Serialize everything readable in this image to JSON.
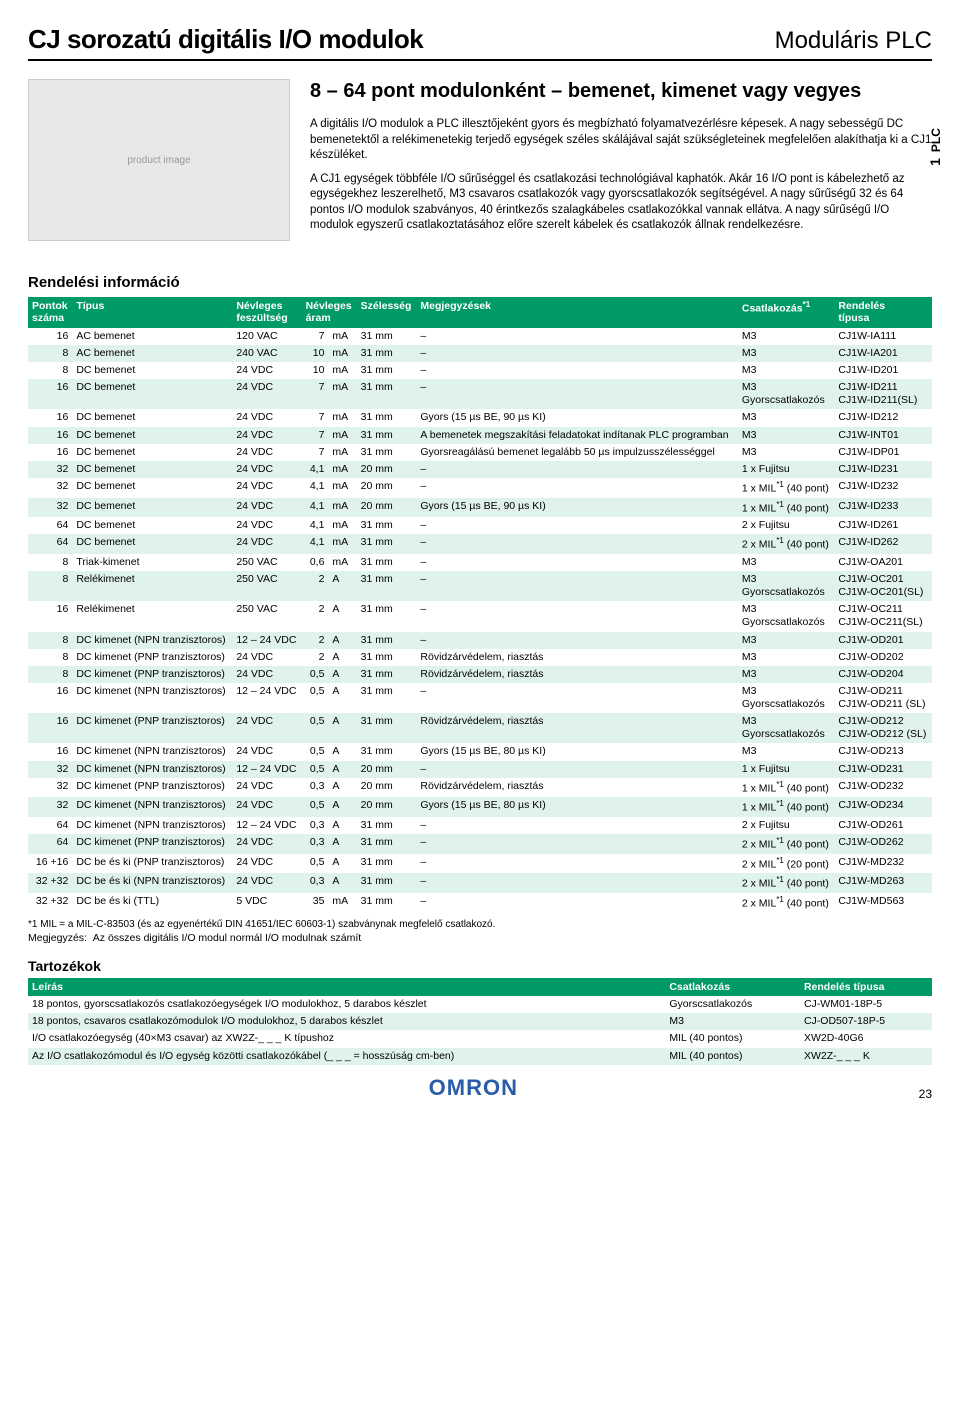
{
  "title": "CJ sorozatú digitális I/O modulok",
  "category": "Moduláris PLC",
  "headline": "8 – 64 pont modulonként – bemenet, kimenet vagy vegyes",
  "p1": "A digitális I/O modulok a PLC illesztőjeként gyors és megbízható folyamatvezérlésre képesek. A nagy sebességű DC bemenetektől a relékimenetekig terjedő egységek széles skálájával saját szükségleteinek megfelelően alakíthatja ki a CJ1 készüléket.",
  "p2": "A CJ1 egységek többféle I/O sűrűséggel és csatlakozási technológiával kaphatók. Akár 16 I/O pont is kábelezhető az egységekhez leszerelhető, M3 csavaros csatlakozók vagy gyorscsatlakozók segítségével. A nagy sűrűségű 32 és 64 pontos I/O modulok szabványos, 40 érintkezős szalagkábeles csatlakozókkal vannak ellátva. A nagy sűrűségű I/O modulok egyszerű csatlakoztatásához előre szerelt kábelek és csatlakozók állnak rendelkezésre.",
  "side_num": "1",
  "side_txt": "PLC",
  "order_title": "Rendelési információ",
  "th": [
    "Pontok száma",
    "Típus",
    "Névleges feszültség",
    "Névleges áram",
    "Szélesség",
    "Megjegyzések",
    "Csatlakozás",
    "Rendelés típusa"
  ],
  "th_fn": "*1",
  "rows": [
    [
      "16",
      "AC bemenet",
      "120 VAC",
      "7",
      "mA",
      "31 mm",
      "–",
      "M3",
      "CJ1W-IA111"
    ],
    [
      "8",
      "AC bemenet",
      "240 VAC",
      "10",
      "mA",
      "31 mm",
      "–",
      "M3",
      "CJ1W-IA201"
    ],
    [
      "8",
      "DC bemenet",
      "24 VDC",
      "10",
      "mA",
      "31 mm",
      "–",
      "M3",
      "CJ1W-ID201"
    ],
    [
      "16",
      "DC bemenet",
      "24 VDC",
      "7",
      "mA",
      "31 mm",
      "–",
      "M3\nGyorscsatlakozós",
      "CJ1W-ID211\nCJ1W-ID211(SL)"
    ],
    [
      "16",
      "DC bemenet",
      "24 VDC",
      "7",
      "mA",
      "31 mm",
      "Gyors (15 µs BE, 90 µs KI)",
      "M3",
      "CJ1W-ID212"
    ],
    [
      "16",
      "DC bemenet",
      "24 VDC",
      "7",
      "mA",
      "31 mm",
      "A bemenetek megszakítási feladatokat indítanak PLC programban",
      "M3",
      "CJ1W-INT01"
    ],
    [
      "16",
      "DC bemenet",
      "24 VDC",
      "7",
      "mA",
      "31 mm",
      "Gyorsreagálású bemenet legalább 50 µs impulzusszélességgel",
      "M3",
      "CJ1W-IDP01"
    ],
    [
      "32",
      "DC bemenet",
      "24 VDC",
      "4,1",
      "mA",
      "20 mm",
      "–",
      "1 x Fujitsu",
      "CJ1W-ID231"
    ],
    [
      "32",
      "DC bemenet",
      "24 VDC",
      "4,1",
      "mA",
      "20 mm",
      "–",
      "1 x MIL<sup>*1</sup> (40 pont)",
      "CJ1W-ID232"
    ],
    [
      "32",
      "DC bemenet",
      "24 VDC",
      "4,1",
      "mA",
      "20 mm",
      "Gyors (15 µs BE, 90 µs KI)",
      "1 x MIL<sup>*1</sup> (40 pont)",
      "CJ1W-ID233"
    ],
    [
      "64",
      "DC bemenet",
      "24 VDC",
      "4,1",
      "mA",
      "31 mm",
      "–",
      "2 x Fujitsu",
      "CJ1W-ID261"
    ],
    [
      "64",
      "DC bemenet",
      "24 VDC",
      "4,1",
      "mA",
      "31 mm",
      "–",
      "2 x MIL<sup>*1</sup> (40 pont)",
      "CJ1W-ID262"
    ],
    [
      "8",
      "Triak-kimenet",
      "250 VAC",
      "0,6",
      "mA",
      "31 mm",
      "–",
      "M3",
      "CJ1W-OA201"
    ],
    [
      "8",
      "Relékimenet",
      "250 VAC",
      "2",
      "A",
      "31 mm",
      "–",
      "M3\nGyorscsatlakozós",
      "CJ1W-OC201\nCJ1W-OC201(SL)"
    ],
    [
      "16",
      "Relékimenet",
      "250 VAC",
      "2",
      "A",
      "31 mm",
      "–",
      "M3\nGyorscsatlakozós",
      "CJ1W-OC211\nCJ1W-OC211(SL)"
    ],
    [
      "8",
      "DC kimenet (NPN tranzisztoros)",
      "12 – 24 VDC",
      "2",
      "A",
      "31 mm",
      "–",
      "M3",
      "CJ1W-OD201"
    ],
    [
      "8",
      "DC kimenet (PNP tranzisztoros)",
      "24 VDC",
      "2",
      "A",
      "31 mm",
      "Rövidzárvédelem, riasztás",
      "M3",
      "CJ1W-OD202"
    ],
    [
      "8",
      "DC kimenet (PNP tranzisztoros)",
      "24 VDC",
      "0,5",
      "A",
      "31 mm",
      "Rövidzárvédelem, riasztás",
      "M3",
      "CJ1W-OD204"
    ],
    [
      "16",
      "DC kimenet (NPN tranzisztoros)",
      "12 – 24 VDC",
      "0,5",
      "A",
      "31 mm",
      "–",
      "M3\nGyorscsatlakozós",
      "CJ1W-OD211\nCJ1W-OD211 (SL)"
    ],
    [
      "16",
      "DC kimenet (PNP tranzisztoros)",
      "24 VDC",
      "0,5",
      "A",
      "31 mm",
      "Rövidzárvédelem, riasztás",
      "M3\nGyorscsatlakozós",
      "CJ1W-OD212\nCJ1W-OD212 (SL)"
    ],
    [
      "16",
      "DC kimenet (NPN tranzisztoros)",
      "24 VDC",
      "0,5",
      "A",
      "31 mm",
      "Gyors (15 µs BE, 80 µs KI)",
      "M3",
      "CJ1W-OD213"
    ],
    [
      "32",
      "DC kimenet (NPN tranzisztoros)",
      "12 – 24 VDC",
      "0,5",
      "A",
      "20 mm",
      "–",
      "1 x Fujitsu",
      "CJ1W-OD231"
    ],
    [
      "32",
      "DC kimenet (PNP tranzisztoros)",
      "24 VDC",
      "0,3",
      "A",
      "20 mm",
      "Rövidzárvédelem, riasztás",
      "1 x MIL<sup>*1</sup> (40 pont)",
      "CJ1W-OD232"
    ],
    [
      "32",
      "DC kimenet (NPN tranzisztoros)",
      "24 VDC",
      "0,5",
      "A",
      "20 mm",
      "Gyors (15 µs BE, 80 µs KI)",
      "1 x MIL<sup>*1</sup> (40 pont)",
      "CJ1W-OD234"
    ],
    [
      "64",
      "DC kimenet (NPN tranzisztoros)",
      "12 – 24 VDC",
      "0,3",
      "A",
      "31 mm",
      "–",
      "2 x Fujitsu",
      "CJ1W-OD261"
    ],
    [
      "64",
      "DC kimenet (PNP tranzisztoros)",
      "24 VDC",
      "0,3",
      "A",
      "31 mm",
      "–",
      "2 x MIL<sup>*1</sup> (40 pont)",
      "CJ1W-OD262"
    ],
    [
      "16 +16",
      "DC be és ki (PNP tranzisztoros)",
      "24 VDC",
      "0,5",
      "A",
      "31 mm",
      "–",
      "2 x MIL<sup>*1</sup> (20 pont)",
      "CJ1W-MD232"
    ],
    [
      "32 +32",
      "DC be és ki (NPN tranzisztoros)",
      "24 VDC",
      "0,3",
      "A",
      "31 mm",
      "–",
      "2 x MIL<sup>*1</sup> (40 pont)",
      "CJ1W-MD263"
    ],
    [
      "32 +32",
      "DC be és ki (TTL)",
      "5 VDC",
      "35",
      "mA",
      "31 mm",
      "–",
      "2 x MIL<sup>*1</sup> (40 pont)",
      "CJ1W-MD563"
    ]
  ],
  "footnote": "*1  MIL = a MIL-C-83503 (és az egyenértékű DIN 41651/IEC 60603-1) szabványnak megfelelő csatlakozó.",
  "note_label": "Megjegyzés:",
  "note_txt": "Az összes digitális I/O modul normál I/O modulnak számít",
  "acc_title": "Tartozékok",
  "acc_th": [
    "Leírás",
    "Csatlakozás",
    "Rendelés típusa"
  ],
  "acc_rows": [
    [
      "18 pontos, gyorscsatlakozós csatlakozóegységek I/O modulokhoz, 5 darabos készlet",
      "Gyorscsatlakozós",
      "CJ-WM01-18P-5"
    ],
    [
      "18 pontos, csavaros csatlakozómodulok I/O modulokhoz, 5 darabos készlet",
      "M3",
      "CJ-OD507-18P-5"
    ],
    [
      "I/O csatlakozóegység (40×M3 csavar) az XW2Z-_ _ _ K típushoz",
      "MIL (40 pontos)",
      "XW2D-40G6"
    ],
    [
      "Az I/O csatlakozómodul és I/O egység közötti csatlakozókábel (_ _ _ = hosszúság cm-ben)",
      "MIL (40 pontos)",
      "XW2Z-_ _ _ K"
    ]
  ],
  "logo": "OMRON",
  "page": "23"
}
